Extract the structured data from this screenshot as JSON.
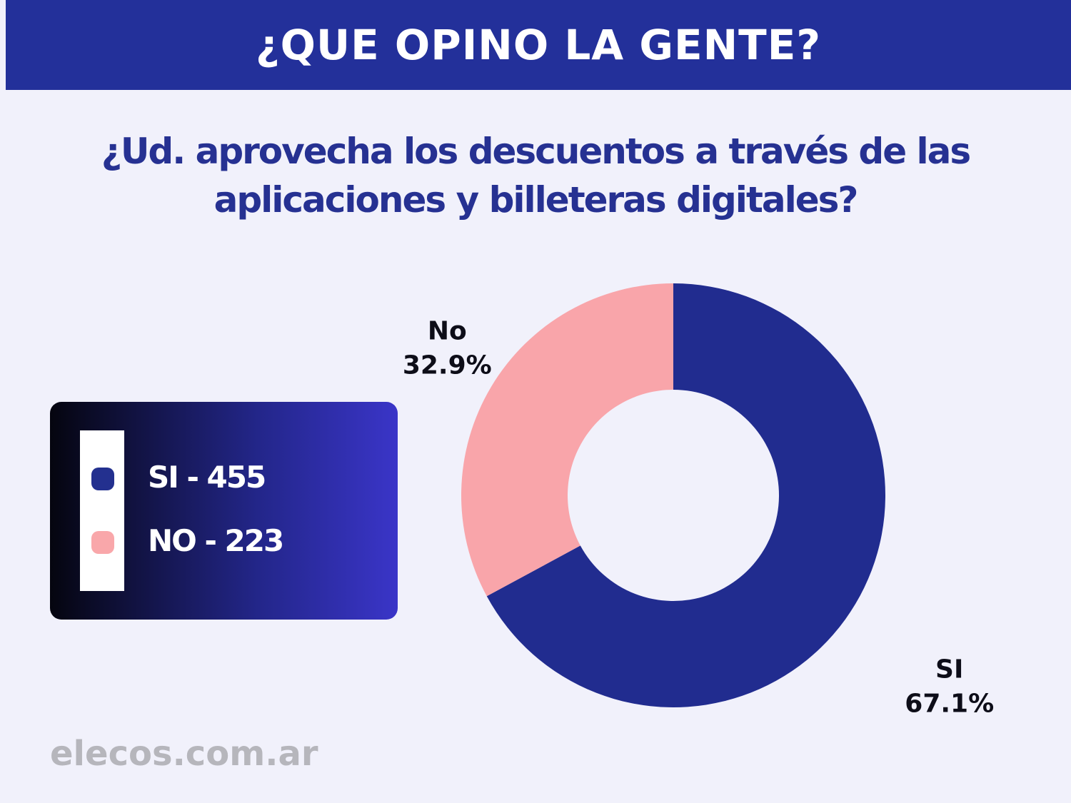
{
  "header": {
    "title": "¿QUE OPINO LA GENTE?"
  },
  "question": "¿Ud. aprovecha los descuentos a través de las aplicaciones y billeteras digitales?",
  "legend": {
    "items": [
      {
        "label": "SI - 455",
        "color": "#23308f"
      },
      {
        "label": "NO - 223",
        "color": "#f9a7aa"
      }
    ]
  },
  "chart_data": {
    "type": "pie",
    "donut": true,
    "title": "¿Ud. aprovecha los descuentos a través de las aplicaciones y billeteras digitales?",
    "categories": [
      "SI",
      "No"
    ],
    "values": [
      455,
      223
    ],
    "percent_labels": [
      "67.1%",
      "32.9%"
    ],
    "colors": [
      "#212c8f",
      "#f9a5aa"
    ],
    "start_angle": "12 o'clock",
    "direction": "clockwise",
    "legend_placement": "left"
  },
  "watermark": "elecos.com.ar"
}
